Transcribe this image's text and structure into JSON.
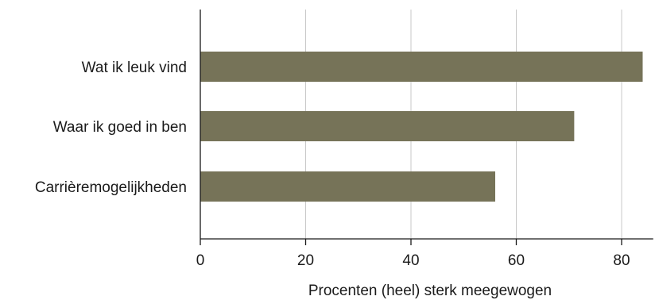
{
  "chart_data": {
    "type": "bar",
    "orientation": "horizontal",
    "categories": [
      "Wat ik leuk vind",
      "Waar ik goed in ben",
      "Carrièremogelijkheden"
    ],
    "values": [
      84,
      71,
      56
    ],
    "xlabel": "Procenten (heel) sterk meegewogen",
    "ylabel": "",
    "xlim": [
      0,
      86
    ],
    "xticks": [
      0,
      20,
      40,
      60,
      80
    ],
    "xtick_labels": [
      "0",
      "20",
      "40",
      "60",
      "80"
    ],
    "grid": "vertical",
    "bar_color": "#767358",
    "grid_color": "#c8c8c8",
    "axis_color": "#1a1a1a"
  }
}
